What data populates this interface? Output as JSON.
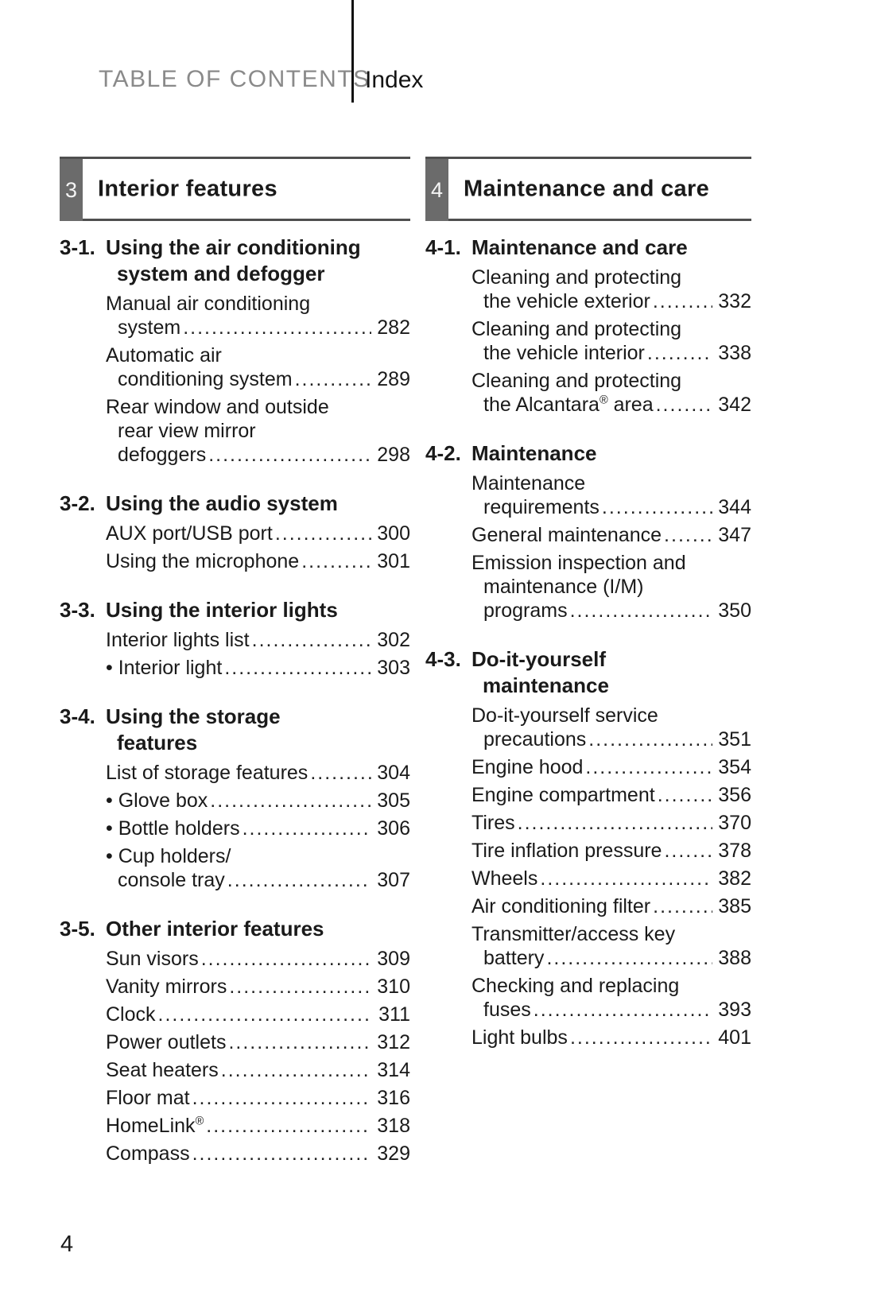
{
  "header": {
    "title": "TABLE OF CONTENTS",
    "tab": "Index"
  },
  "page_number": "4",
  "colors": {
    "chapter_badge": "#6b6b6b",
    "rule": "#4f4f4f",
    "header_muted": "#8a8a8a",
    "text": "#1a1a1a"
  },
  "columns": [
    {
      "chapter_number": "3",
      "chapter_title": "Interior features",
      "sections": [
        {
          "number": "3-1.",
          "title_lines": [
            "Using the air conditioning",
            "system and defogger"
          ],
          "entries": [
            {
              "lines": [
                "Manual air conditioning",
                "system"
              ],
              "page": "282"
            },
            {
              "lines": [
                "Automatic air",
                "conditioning system"
              ],
              "page": "289"
            },
            {
              "lines": [
                "Rear window and outside",
                "rear view mirror",
                "defoggers"
              ],
              "page": "298"
            }
          ]
        },
        {
          "number": "3-2.",
          "title_lines": [
            "Using the audio system"
          ],
          "entries": [
            {
              "lines": [
                "AUX port/USB port"
              ],
              "page": "300"
            },
            {
              "lines": [
                "Using the microphone"
              ],
              "page": "301"
            }
          ]
        },
        {
          "number": "3-3.",
          "title_lines": [
            "Using the interior lights"
          ],
          "entries": [
            {
              "lines": [
                "Interior lights list"
              ],
              "page": "302"
            },
            {
              "bullet": true,
              "lines": [
                "Interior light"
              ],
              "page": "303"
            }
          ]
        },
        {
          "number": "3-4.",
          "title_lines": [
            "Using the storage",
            "features"
          ],
          "entries": [
            {
              "lines": [
                "List of storage features"
              ],
              "page": "304"
            },
            {
              "bullet": true,
              "lines": [
                "Glove box"
              ],
              "page": "305"
            },
            {
              "bullet": true,
              "lines": [
                "Bottle holders"
              ],
              "page": "306"
            },
            {
              "bullet": true,
              "lines": [
                "Cup holders/",
                "console tray"
              ],
              "page": "307"
            }
          ]
        },
        {
          "number": "3-5.",
          "title_lines": [
            "Other interior features"
          ],
          "entries": [
            {
              "lines": [
                "Sun visors"
              ],
              "page": "309"
            },
            {
              "lines": [
                "Vanity mirrors"
              ],
              "page": "310"
            },
            {
              "lines": [
                "Clock"
              ],
              "page": "311"
            },
            {
              "lines": [
                "Power outlets"
              ],
              "page": "312"
            },
            {
              "lines": [
                "Seat heaters"
              ],
              "page": "314"
            },
            {
              "lines": [
                "Floor mat"
              ],
              "page": "316"
            },
            {
              "lines": [
                "HomeLink®"
              ],
              "page": "318"
            },
            {
              "lines": [
                "Compass"
              ],
              "page": "329"
            }
          ]
        }
      ]
    },
    {
      "chapter_number": "4",
      "chapter_title": "Maintenance and care",
      "sections": [
        {
          "number": "4-1.",
          "title_lines": [
            "Maintenance and care"
          ],
          "entries": [
            {
              "lines": [
                "Cleaning and protecting",
                "the vehicle exterior"
              ],
              "page": "332"
            },
            {
              "lines": [
                "Cleaning and protecting",
                "the vehicle interior"
              ],
              "page": "338"
            },
            {
              "lines": [
                "Cleaning and protecting",
                "the Alcantara® area"
              ],
              "page": "342"
            }
          ]
        },
        {
          "number": "4-2.",
          "title_lines": [
            "Maintenance"
          ],
          "entries": [
            {
              "lines": [
                "Maintenance",
                "requirements"
              ],
              "page": "344"
            },
            {
              "lines": [
                "General maintenance"
              ],
              "page": "347"
            },
            {
              "lines": [
                "Emission inspection and",
                "maintenance (I/M)",
                "programs"
              ],
              "page": "350"
            }
          ]
        },
        {
          "number": "4-3.",
          "title_lines": [
            "Do-it-yourself",
            "maintenance"
          ],
          "entries": [
            {
              "lines": [
                "Do-it-yourself service",
                "precautions"
              ],
              "page": "351"
            },
            {
              "lines": [
                "Engine hood"
              ],
              "page": "354"
            },
            {
              "lines": [
                "Engine compartment"
              ],
              "page": "356"
            },
            {
              "lines": [
                "Tires"
              ],
              "page": "370"
            },
            {
              "lines": [
                "Tire inflation pressure"
              ],
              "page": "378"
            },
            {
              "lines": [
                "Wheels"
              ],
              "page": "382"
            },
            {
              "lines": [
                "Air conditioning filter"
              ],
              "page": "385"
            },
            {
              "lines": [
                "Transmitter/access key",
                "battery"
              ],
              "page": "388"
            },
            {
              "lines": [
                "Checking and replacing",
                "fuses"
              ],
              "page": "393"
            },
            {
              "lines": [
                "Light bulbs"
              ],
              "page": "401"
            }
          ]
        }
      ]
    }
  ]
}
